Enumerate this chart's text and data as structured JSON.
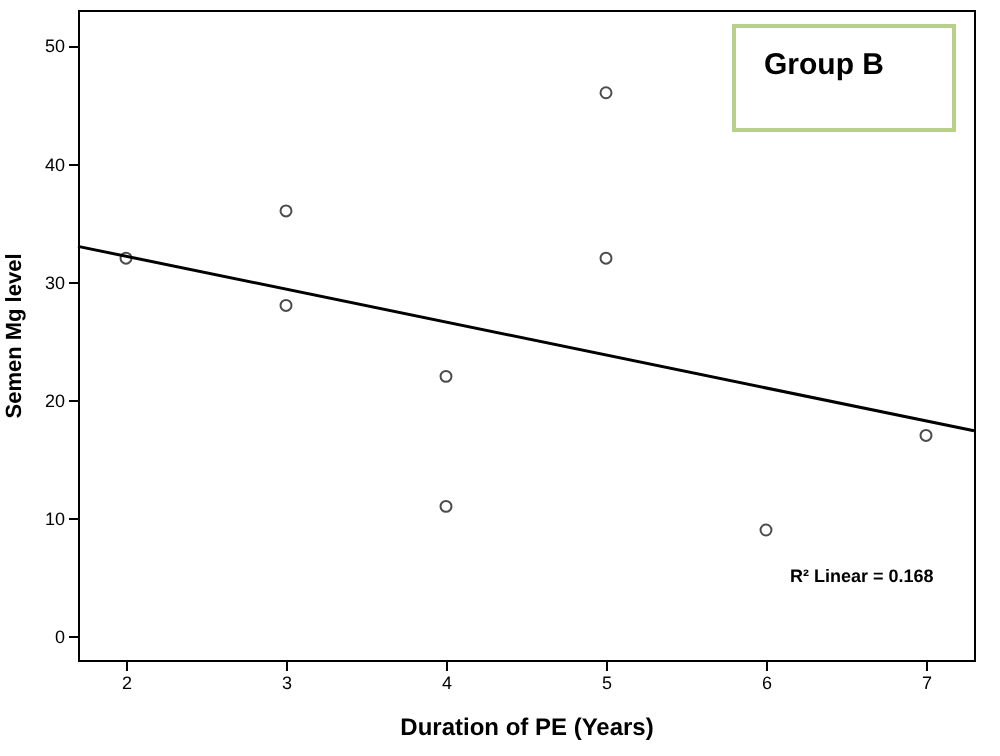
{
  "chart_data": {
    "type": "scatter",
    "title": "Group B",
    "xlabel": "Duration of PE (Years)",
    "ylabel": "Semen Mg level",
    "xlim": [
      1.7,
      7.3
    ],
    "ylim": [
      -2,
      53
    ],
    "xticks": [
      2,
      3,
      4,
      5,
      6,
      7
    ],
    "yticks": [
      0,
      10,
      20,
      30,
      40,
      50
    ],
    "grid": false,
    "series": [
      {
        "marker": "circle",
        "color": "#000000",
        "x": [
          2,
          3,
          3,
          4,
          4,
          5,
          5,
          6,
          7
        ],
        "values": [
          32,
          36,
          28,
          22,
          11,
          46,
          32,
          9,
          17
        ]
      },
      {
        "type": "line",
        "color": "#000000",
        "x": [
          1.7,
          7.3
        ],
        "values": [
          33,
          17.4
        ]
      }
    ],
    "annotations": [
      "R² Linear = 0.168"
    ]
  }
}
